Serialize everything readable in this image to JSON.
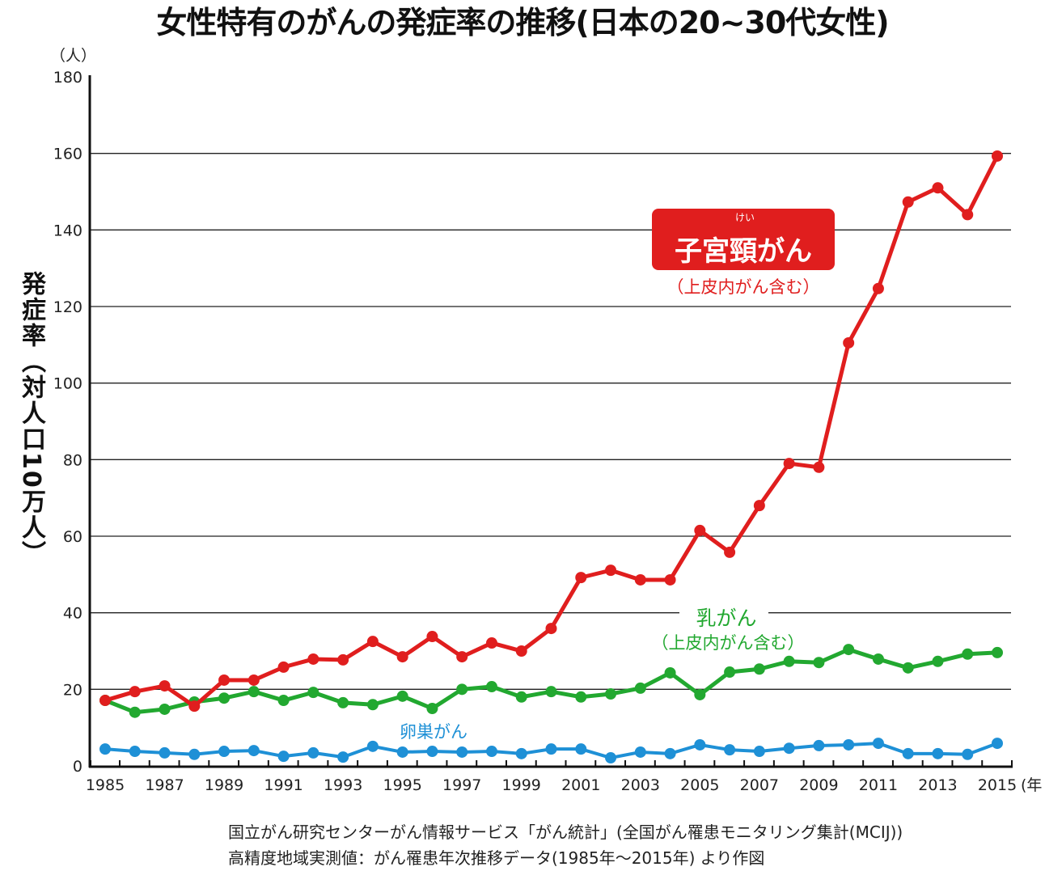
{
  "chart_data": {
    "type": "line",
    "title": "女性特有のがんの発症率の推移(日本の20~30代女性)",
    "ylabel": "発症率（対人口10万人）",
    "yunit": "（人）",
    "xunit": "(年",
    "ylim": [
      0,
      180
    ],
    "yticks": [
      0,
      20,
      40,
      60,
      80,
      100,
      120,
      140,
      160,
      180
    ],
    "xlim": [
      1985,
      2015
    ],
    "xtick_labels": [
      "1985",
      "1987",
      "1989",
      "1991",
      "1993",
      "1995",
      "1997",
      "1999",
      "2001",
      "2003",
      "2005",
      "2007",
      "2009",
      "2011",
      "2013",
      "2015"
    ],
    "grid": "horizontal",
    "x": [
      1985,
      1986,
      1987,
      1988,
      1989,
      1990,
      1991,
      1992,
      1993,
      1994,
      1995,
      1996,
      1997,
      1998,
      1999,
      2000,
      2001,
      2002,
      2003,
      2004,
      2005,
      2006,
      2007,
      2008,
      2009,
      2010,
      2011,
      2012,
      2013,
      2014,
      2015
    ],
    "series": [
      {
        "name": "子宮頸がん",
        "note": "（上皮内がん含む）",
        "ruby": "けい",
        "color": "#e01e1e",
        "values": [
          17.1,
          19.4,
          20.9,
          15.6,
          22.4,
          22.4,
          25.8,
          27.9,
          27.7,
          32.5,
          28.5,
          33.8,
          28.5,
          32.1,
          30.0,
          35.9,
          49.2,
          51.1,
          48.6,
          48.6,
          61.5,
          55.8,
          68.0,
          79.0,
          78.0,
          110.5,
          124.7,
          147.3,
          151.0,
          144.0,
          159.3
        ]
      },
      {
        "name": "乳がん",
        "note": "（上皮内がん含む）",
        "color": "#22a830",
        "values": [
          17.1,
          14.0,
          14.8,
          16.7,
          17.7,
          19.4,
          17.1,
          19.2,
          16.5,
          16.0,
          18.2,
          15.0,
          20.0,
          20.7,
          18.0,
          19.4,
          18.0,
          18.8,
          20.3,
          24.3,
          18.6,
          24.5,
          25.3,
          27.3,
          27.0,
          30.4,
          27.9,
          25.6,
          27.3,
          29.2,
          29.6
        ]
      },
      {
        "name": "卵巣がん",
        "color": "#1e90d6",
        "values": [
          4.4,
          3.8,
          3.4,
          3.0,
          3.8,
          4.0,
          2.5,
          3.4,
          2.3,
          5.1,
          3.6,
          3.8,
          3.6,
          3.8,
          3.2,
          4.4,
          4.4,
          2.1,
          3.6,
          3.2,
          5.5,
          4.2,
          3.8,
          4.6,
          5.3,
          5.5,
          5.9,
          3.2,
          3.2,
          3.0,
          5.9
        ]
      }
    ],
    "source": [
      "国立がん研究センターがん情報サービス「がん統計」(全国がん罹患モニタリング集計(MCIJ))",
      "高精度地域実測値：がん罹患年次推移データ(1985年～2015年) より作図"
    ]
  }
}
